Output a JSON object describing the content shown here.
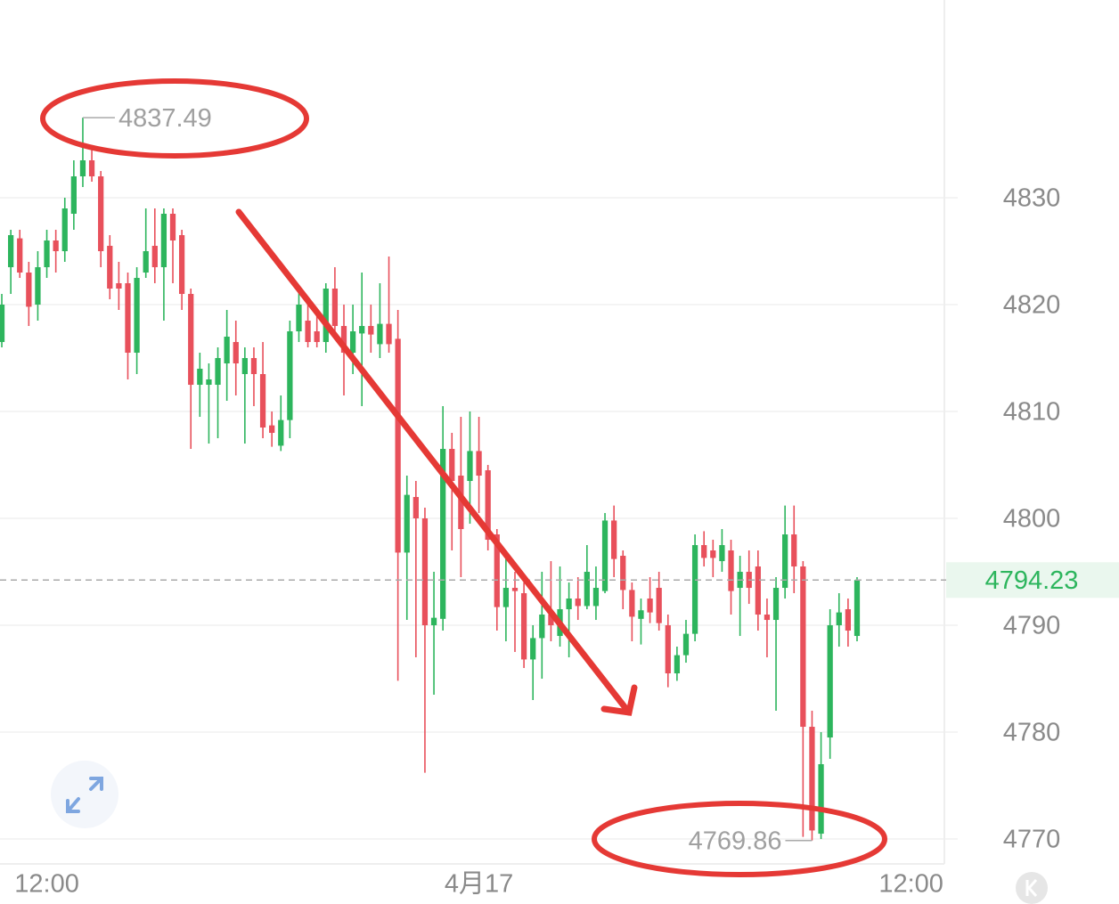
{
  "chart_data": {
    "type": "candlestick",
    "up_color": "#2db55d",
    "down_color": "#e8505b",
    "grid": true,
    "ylim": [
      4767.67,
      4848.5
    ],
    "yticks": [
      4770,
      4780,
      4790,
      4800,
      4810,
      4820,
      4830
    ],
    "xlim": [
      -0.2,
      104.7
    ],
    "xticks": [
      {
        "value": 5,
        "label": "12:00"
      },
      {
        "value": 53,
        "label": "4月17"
      },
      {
        "value": 101,
        "label": "12:00"
      }
    ],
    "last_price": 4794.23,
    "high_annotation": {
      "x": 9,
      "value": 4837.49
    },
    "low_annotation": {
      "x": 90,
      "value": 4769.86
    },
    "candles": [
      [
        4816.5,
        4821,
        4816,
        4820
      ],
      [
        4823.5,
        4827,
        4821,
        4826.5
      ],
      [
        4826.2,
        4827,
        4822.5,
        4823
      ],
      [
        4823,
        4824,
        4818,
        4819.8
      ],
      [
        4820,
        4825,
        4818.5,
        4823.5
      ],
      [
        4823.5,
        4827,
        4822.5,
        4826
      ],
      [
        4826,
        4827,
        4823,
        4825
      ],
      [
        4825,
        4830,
        4824,
        4829
      ],
      [
        4828.5,
        4833.5,
        4827,
        4832
      ],
      [
        4832,
        4837.49,
        4831,
        4833.5
      ],
      [
        4833.5,
        4834.5,
        4831.5,
        4832
      ],
      [
        4832,
        4832.5,
        4823.5,
        4825
      ],
      [
        4825.5,
        4826.5,
        4820.5,
        4821.5
      ],
      [
        4822,
        4824,
        4819.5,
        4821.5
      ],
      [
        4822,
        4823,
        4813,
        4815.5
      ],
      [
        4815.5,
        4823.5,
        4813.5,
        4822.5
      ],
      [
        4823,
        4829,
        4822.5,
        4825
      ],
      [
        4825.5,
        4829,
        4822,
        4823.5
      ],
      [
        4823.5,
        4829,
        4818.5,
        4828.5
      ],
      [
        4828.5,
        4829,
        4822,
        4826
      ],
      [
        4826.5,
        4827,
        4819.5,
        4821
      ],
      [
        4821,
        4821.5,
        4806.5,
        4812.5
      ],
      [
        4812.5,
        4815.5,
        4809.5,
        4814
      ],
      [
        4812.5,
        4814.5,
        4807,
        4813
      ],
      [
        4812.5,
        4816,
        4807.5,
        4815
      ],
      [
        4814.5,
        4819.5,
        4811,
        4817
      ],
      [
        4816.5,
        4818.5,
        4811.5,
        4814.5
      ],
      [
        4813.5,
        4816,
        4807,
        4815
      ],
      [
        4815,
        4816,
        4810.5,
        4813.5
      ],
      [
        4813.5,
        4816.5,
        4807.5,
        4808.5
      ],
      [
        4808.7,
        4810,
        4806.7,
        4808
      ],
      [
        4806.8,
        4811.5,
        4806.3,
        4809.2
      ],
      [
        4809.2,
        4818.5,
        4807.5,
        4817.5
      ],
      [
        4817.5,
        4821.5,
        4816.5,
        4820
      ],
      [
        4818.5,
        4820.5,
        4816,
        4816.5
      ],
      [
        4817.5,
        4819,
        4816,
        4816.5
      ],
      [
        4816.5,
        4822,
        4815.5,
        4821.5
      ],
      [
        4821.5,
        4823.5,
        4817,
        4818
      ],
      [
        4818,
        4820,
        4811.5,
        4815.5
      ],
      [
        4815.5,
        4820,
        4813.5,
        4817.5
      ],
      [
        4817.3,
        4823,
        4810.5,
        4818
      ],
      [
        4818,
        4820,
        4815.5,
        4817.2
      ],
      [
        4816.3,
        4822,
        4815,
        4818.2
      ],
      [
        4818.2,
        4824.5,
        4815.5,
        4816.3
      ],
      [
        4816.8,
        4819.5,
        4784.8,
        4796.8
      ],
      [
        4796.8,
        4804,
        4790.5,
        4802.2
      ],
      [
        4802,
        4803.5,
        4787,
        4800
      ],
      [
        4800,
        4801,
        4776.2,
        4790
      ],
      [
        4790,
        4795,
        4783.5,
        4790.7
      ],
      [
        4790.6,
        4810.5,
        4789.5,
        4806.5
      ],
      [
        4806.5,
        4808,
        4797,
        4803.5
      ],
      [
        4804,
        4809.5,
        4794.5,
        4799
      ],
      [
        4803.5,
        4810,
        4799.5,
        4806.3
      ],
      [
        4806.3,
        4809.5,
        4800.5,
        4804
      ],
      [
        4804.5,
        4805,
        4797,
        4798
      ],
      [
        4798.5,
        4799,
        4789.5,
        4791.7
      ],
      [
        4791.7,
        4797,
        4788.5,
        4793.5
      ],
      [
        4793.5,
        4795,
        4787.5,
        4793.2
      ],
      [
        4793,
        4794,
        4786,
        4786.8
      ],
      [
        4786.8,
        4790,
        4783,
        4788.8
      ],
      [
        4788.8,
        4795,
        4785,
        4791
      ],
      [
        4791,
        4796,
        4788.5,
        4790
      ],
      [
        4789,
        4795.5,
        4788,
        4791.5
      ],
      [
        4791.5,
        4794,
        4787,
        4792.5
      ],
      [
        4792.5,
        4794.5,
        4790.5,
        4791.8
      ],
      [
        4791.8,
        4797.5,
        4791.5,
        4795
      ],
      [
        4791.8,
        4795.5,
        4790.5,
        4793.5
      ],
      [
        4793.2,
        4800.5,
        4793,
        4799.8
      ],
      [
        4799.8,
        4801.2,
        4794.5,
        4796.2
      ],
      [
        4796.5,
        4797,
        4791.5,
        4793.3
      ],
      [
        4793.3,
        4794,
        4788.5,
        4790.8
      ],
      [
        4790.6,
        4792.5,
        4788.2,
        4791.4
      ],
      [
        4792.5,
        4794.5,
        4790.2,
        4791.2
      ],
      [
        4793.5,
        4795,
        4789.5,
        4790.2
      ],
      [
        4790,
        4791,
        4784.2,
        4785.5
      ],
      [
        4785.5,
        4788,
        4784.8,
        4787.2
      ],
      [
        4787.2,
        4790.5,
        4786.5,
        4789.2
      ],
      [
        4789.2,
        4798.5,
        4788.5,
        4797.5
      ],
      [
        4797.5,
        4798.8,
        4795.5,
        4796.3
      ],
      [
        4797,
        4798,
        4794.5,
        4796.3
      ],
      [
        4796,
        4799,
        4795,
        4797.5
      ],
      [
        4797,
        4798,
        4791,
        4793.2
      ],
      [
        4793.5,
        4796.5,
        4789,
        4795
      ],
      [
        4795,
        4797,
        4792,
        4793.5
      ],
      [
        4795.5,
        4797,
        4789.5,
        4791
      ],
      [
        4791,
        4792.5,
        4787,
        4790.5
      ],
      [
        4790.5,
        4794.5,
        4782,
        4793.5
      ],
      [
        4793.5,
        4801.2,
        4792.5,
        4798.5
      ],
      [
        4798.5,
        4801.2,
        4793,
        4795.5
      ],
      [
        4795.5,
        4796,
        4770.2,
        4780.5
      ],
      [
        4780.5,
        4782,
        4769.86,
        4770.8
      ],
      [
        4770.5,
        4780,
        4770,
        4777
      ],
      [
        4779.5,
        4791.5,
        4777.5,
        4790
      ],
      [
        4790,
        4793,
        4788,
        4791.2
      ],
      [
        4791.5,
        4792.5,
        4788,
        4789.5
      ],
      [
        4789,
        4794.5,
        4788.5,
        4794.23
      ]
    ]
  }
}
